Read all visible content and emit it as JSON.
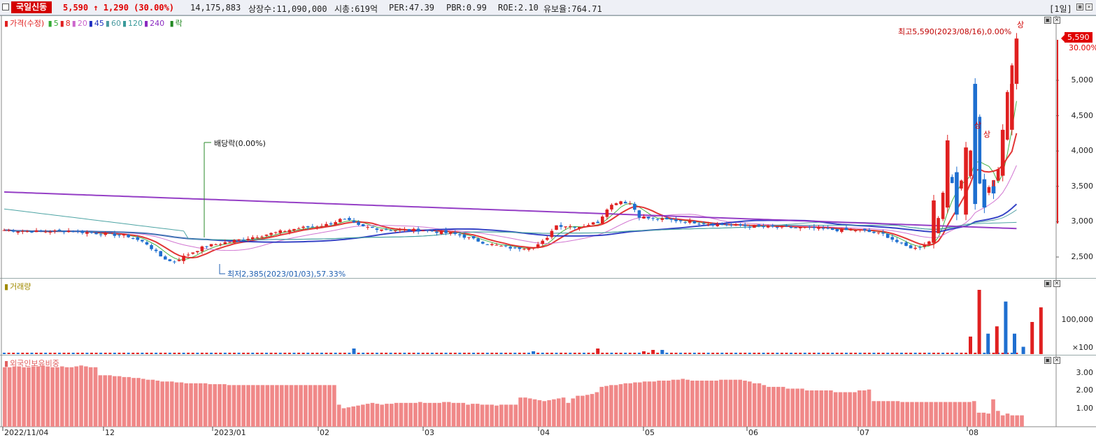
{
  "header": {
    "stock_name": "국일신동",
    "price": "5,590",
    "change": "↑ 1,290",
    "change_pct": "(30.00%)",
    "volume": "14,175,883",
    "listed": "상장수:11,090,000",
    "mktcap": "시총:619억",
    "per": "PER:47.39",
    "pbr": "PBR:0.99",
    "roe": "ROE:2.10",
    "reserve": "유보율:764.71",
    "period": "[1일]"
  },
  "legend": {
    "price_label": "가격(수정)",
    "ma": [
      {
        "label": "5",
        "color": "#33aa33"
      },
      {
        "label": "8",
        "color": "#e02020"
      },
      {
        "label": "20",
        "color": "#cc66cc"
      },
      {
        "label": "45",
        "color": "#2030c0"
      },
      {
        "label": "60",
        "color": "#4a9aa0"
      },
      {
        "label": "120",
        "color": "#3a9a9a"
      },
      {
        "label": "240",
        "color": "#8a2ac0"
      }
    ],
    "div_label": "락",
    "volume_label": "거래량",
    "foreign_label": "외국인보유비중"
  },
  "annotations": {
    "high": "최고5,590(2023/08/16),0.00%",
    "low": "최저2,385(2023/01/03),57.33%",
    "dividend": "배당락(0.00%)",
    "limit_up": "상"
  },
  "price_tag": {
    "value": "5,590",
    "pct": "30.00%"
  },
  "y_price_ticks": [
    "5,000",
    "4,500",
    "4,000",
    "3,500",
    "3,000",
    "2,500"
  ],
  "y_volume_ticks": [
    "100,000",
    "×100"
  ],
  "y_foreign_ticks": [
    "3.00",
    "2.00",
    "1.00"
  ],
  "x_ticks": [
    "2022/11/04",
    "12",
    "2023/01",
    "02",
    "03",
    "04",
    "05",
    "06",
    "07",
    "08"
  ],
  "colors": {
    "up": "#e02020",
    "down": "#1f6fd0",
    "foreign_bar": "#f08888"
  },
  "chart_data": {
    "type": "candlestick",
    "y_range": [
      2300,
      5700
    ],
    "notable_bars": [
      {
        "date": "2023/01/03",
        "low": 2385
      },
      {
        "date": "2023/08/16",
        "close": 5590,
        "change_pct": 30.0
      }
    ],
    "foreign_ratio": [
      3.3,
      3.3,
      3.35,
      3.35,
      3.3,
      3.3,
      3.35,
      3.35,
      3.4,
      3.35,
      3.3,
      3.3,
      3.35,
      3.3,
      3.3,
      3.35,
      3.4,
      3.35,
      3.3,
      3.3,
      2.85,
      2.85,
      2.85,
      2.8,
      2.8,
      2.75,
      2.75,
      2.7,
      2.7,
      2.65,
      2.6,
      2.6,
      2.55,
      2.5,
      2.5,
      2.5,
      2.45,
      2.45,
      2.4,
      2.4,
      2.4,
      2.4,
      2.4,
      2.35,
      2.35,
      2.35,
      2.35,
      2.3,
      2.3,
      2.3,
      2.3,
      2.3,
      2.3,
      2.3,
      2.3,
      2.3,
      2.3,
      2.3,
      2.3,
      2.3,
      2.3,
      2.3,
      2.3,
      2.3,
      2.3,
      2.3,
      2.3,
      2.3,
      2.3,
      2.3,
      1.2,
      1.0,
      1.05,
      1.1,
      1.15,
      1.2,
      1.25,
      1.3,
      1.25,
      1.2,
      1.25,
      1.25,
      1.3,
      1.3,
      1.3,
      1.3,
      1.3,
      1.35,
      1.3,
      1.3,
      1.3,
      1.3,
      1.35,
      1.35,
      1.3,
      1.3,
      1.3,
      1.2,
      1.25,
      1.25,
      1.2,
      1.2,
      1.2,
      1.15,
      1.2,
      1.2,
      1.2,
      1.2,
      1.6,
      1.6,
      1.55,
      1.5,
      1.45,
      1.4,
      1.45,
      1.5,
      1.55,
      1.6,
      1.3,
      1.55,
      1.7,
      1.7,
      1.75,
      1.8,
      1.9,
      2.2,
      2.25,
      2.3,
      2.3,
      2.35,
      2.4,
      2.4,
      2.45,
      2.45,
      2.5,
      2.5,
      2.5,
      2.55,
      2.55,
      2.55,
      2.6,
      2.6,
      2.65,
      2.6,
      2.55,
      2.55,
      2.55,
      2.55,
      2.55,
      2.55,
      2.6,
      2.6,
      2.6,
      2.6,
      2.6,
      2.55,
      2.5,
      2.4,
      2.4,
      2.3,
      2.2,
      2.2,
      2.2,
      2.2,
      2.1,
      2.1,
      2.1,
      2.1,
      2.0,
      2.0,
      2.0,
      2.0,
      2.0,
      2.0,
      1.9,
      1.9,
      1.9,
      1.9,
      1.9,
      2.0,
      2.0,
      2.05,
      1.4,
      1.4,
      1.4,
      1.4,
      1.4,
      1.4,
      1.35,
      1.35,
      1.35,
      1.35,
      1.35,
      1.35,
      1.35,
      1.35,
      1.35,
      1.35,
      1.35,
      1.35,
      1.35,
      1.35,
      1.35,
      1.4,
      0.75,
      0.75,
      0.7,
      1.5,
      0.85,
      0.6,
      0.7,
      0.6,
      0.6,
      0.6
    ],
    "big_volume_bars": [
      {
        "index": 203,
        "volume": 60000,
        "dir": "up"
      },
      {
        "index": 205,
        "volume": 220000,
        "dir": "up"
      },
      {
        "index": 207,
        "volume": 70000,
        "dir": "down"
      },
      {
        "index": 209,
        "volume": 95000,
        "dir": "up"
      },
      {
        "index": 211,
        "volume": 180000,
        "dir": "down"
      },
      {
        "index": 213,
        "volume": 70000,
        "dir": "down"
      },
      {
        "index": 215,
        "volume": 25000,
        "dir": "down"
      },
      {
        "index": 217,
        "volume": 110000,
        "dir": "up"
      },
      {
        "index": 219,
        "volume": 160000,
        "dir": "up"
      }
    ]
  }
}
